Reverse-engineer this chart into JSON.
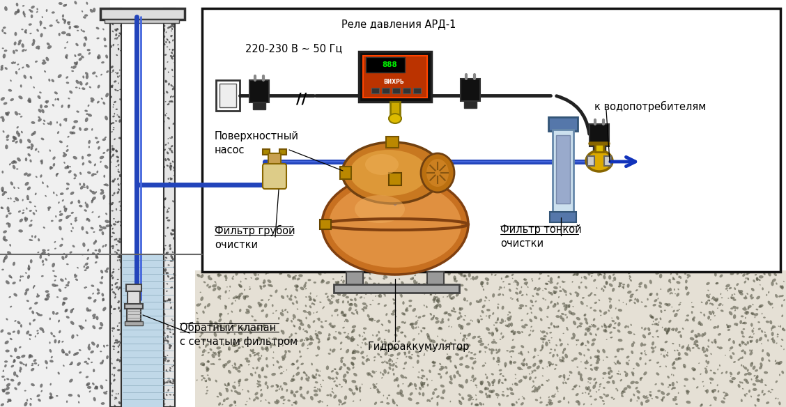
{
  "labels": {
    "voltage": "220-230 В ~ 50 Гц",
    "relay": "Реле давления АРД-1",
    "surface_pump": "Поверхностный\nнасос",
    "coarse_filter": "Фильтр грубой\nочистки",
    "fine_filter": "Фильтр тонкой\nочистки",
    "check_valve": "Обратный клапан\nс сетчатым фильтром",
    "accumulator": "Гидроаккумулятор",
    "consumers": "к водопотребителям"
  },
  "colors": {
    "pipe": "#2244bb",
    "pipe2": "#4466dd",
    "tank": "#c87020",
    "tank_hi": "#e09040",
    "pump": "#c87820",
    "pump_hi": "#dd9838",
    "relay_bg": "#111111",
    "relay_face": "#bb3300",
    "filter_clear": "#cce0ee",
    "filter_cap": "#5577aa",
    "valve_yellow": "#ddaa00",
    "wire": "#222222",
    "plug": "#111111",
    "brass": "#bb9900",
    "water": "#c0d8e8",
    "text": "#000000",
    "box_edge": "#111111",
    "arrow": "#1133bb",
    "bg": "#ffffff"
  }
}
